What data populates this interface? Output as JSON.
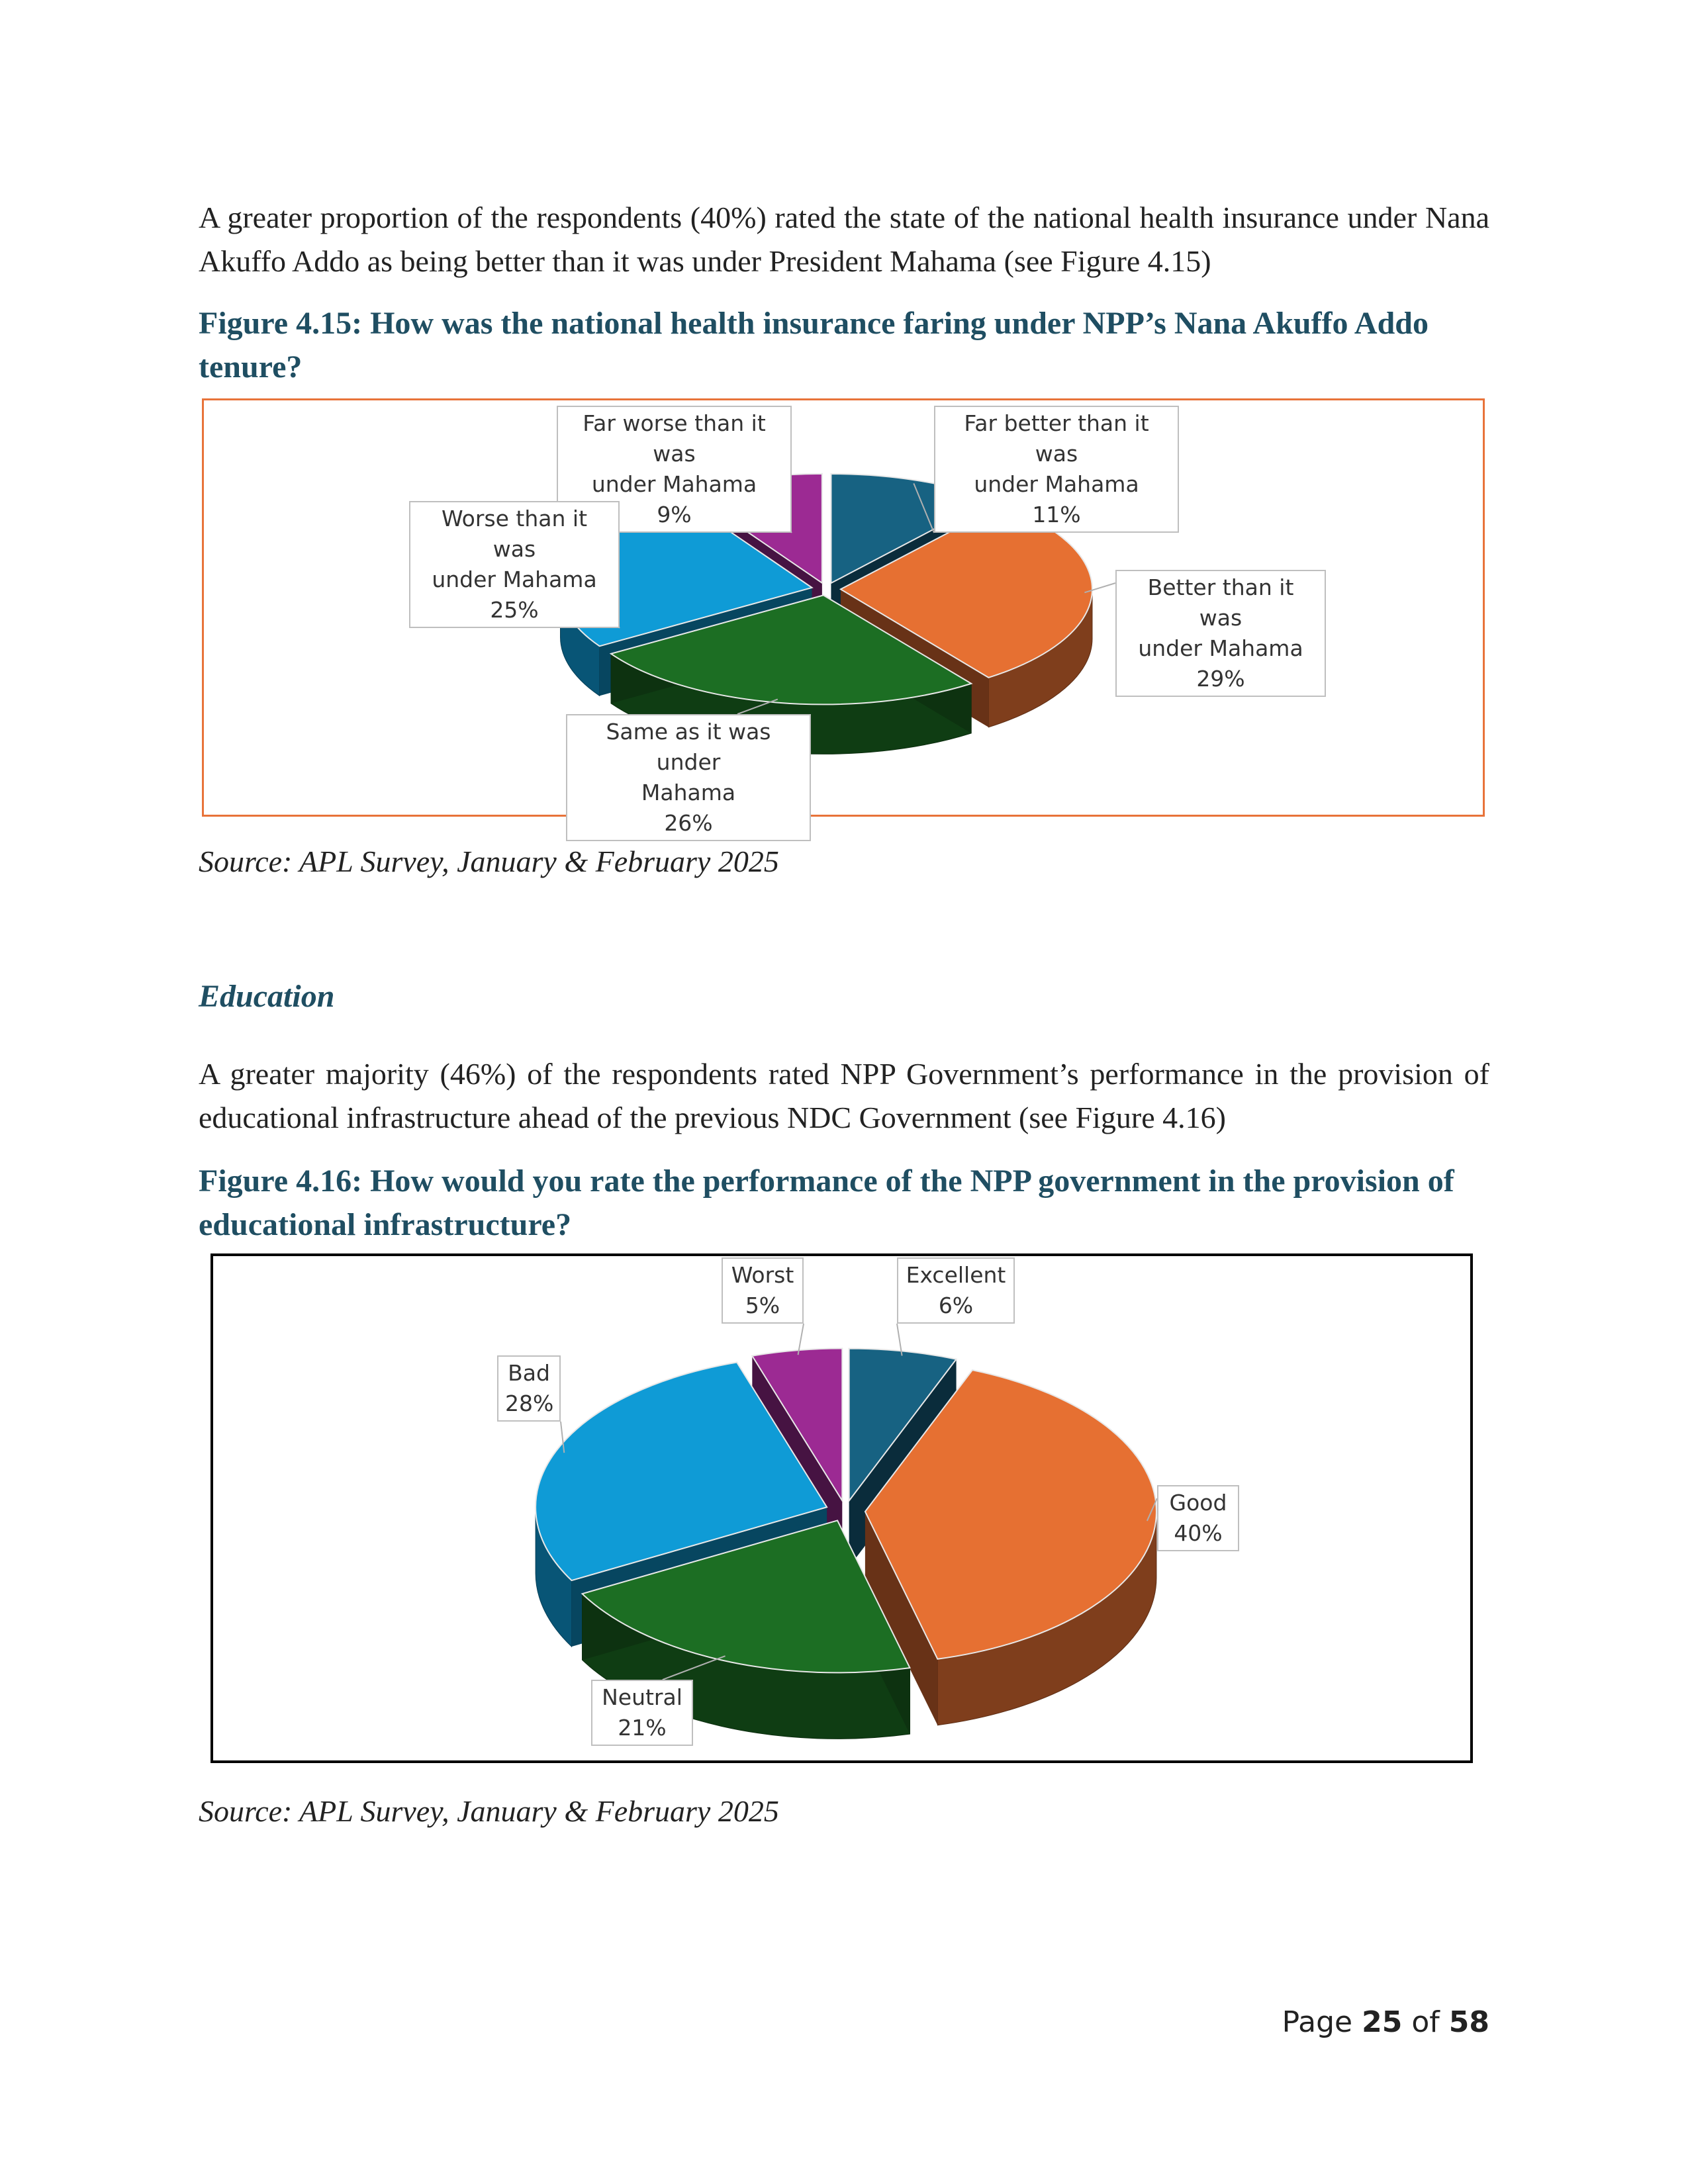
{
  "paragraph1": "A greater proportion of the respondents (40%) rated the state of the national health insurance under Nana Akuffo Addo as being better than it was under President Mahama (see Figure 4.15)",
  "figure1": {
    "title": "Figure 4.15: How was the national health insurance faring under NPP’s Nana Akuffo Addo tenure?",
    "source": "Source: APL Survey, January & February 2025"
  },
  "section_heading": "Education",
  "paragraph2": "A greater majority (46%) of the respondents rated NPP Government’s performance in the provision of educational infrastructure ahead of the previous NDC Government (see Figure 4.16)",
  "figure2": {
    "title": "Figure 4.16: How would you rate the performance of the NPP government in the provision of educational infrastructure?",
    "source": "Source: APL Survey, January & February 2025"
  },
  "page": {
    "prefix": "Page",
    "current": "25",
    "of": "of",
    "total": "58"
  },
  "chart_data": [
    {
      "type": "pie",
      "style": "3d-exploded",
      "frame_color": "#e8733a",
      "categories": [
        "Far better than it was under Mahama",
        "Better than it was under Mahama",
        "Same as it was under Mahama",
        "Worse than it was under Mahama",
        "Far worse than it was under Mahama"
      ],
      "values": [
        11,
        29,
        26,
        25,
        9
      ],
      "labels": [
        {
          "lines": [
            "Far better than it was",
            "under Mahama",
            "11%"
          ]
        },
        {
          "lines": [
            "Better than it was",
            "under Mahama",
            "29%"
          ]
        },
        {
          "lines": [
            "Same as it was under",
            "Mahama",
            "26%"
          ]
        },
        {
          "lines": [
            "Worse than it was",
            "under Mahama",
            "25%"
          ]
        },
        {
          "lines": [
            "Far worse than it was",
            "under Mahama",
            "9%"
          ]
        }
      ],
      "colors": [
        "#176282",
        "#e67032",
        "#1c6e23",
        "#0f9bd6",
        "#9c2a93"
      ]
    },
    {
      "type": "pie",
      "style": "3d-exploded",
      "frame_color": "#000000",
      "categories": [
        "Excellent",
        "Good",
        "Neutral",
        "Bad",
        "Worst"
      ],
      "values": [
        6,
        40,
        21,
        28,
        5
      ],
      "labels": [
        {
          "lines": [
            "Excellent",
            "6%"
          ]
        },
        {
          "lines": [
            "Good",
            "40%"
          ]
        },
        {
          "lines": [
            "Neutral",
            "21%"
          ]
        },
        {
          "lines": [
            "Bad",
            "28%"
          ]
        },
        {
          "lines": [
            "Worst",
            "5%"
          ]
        }
      ],
      "colors": [
        "#176282",
        "#e67032",
        "#1c6e23",
        "#0f9bd6",
        "#9c2a93"
      ]
    }
  ]
}
